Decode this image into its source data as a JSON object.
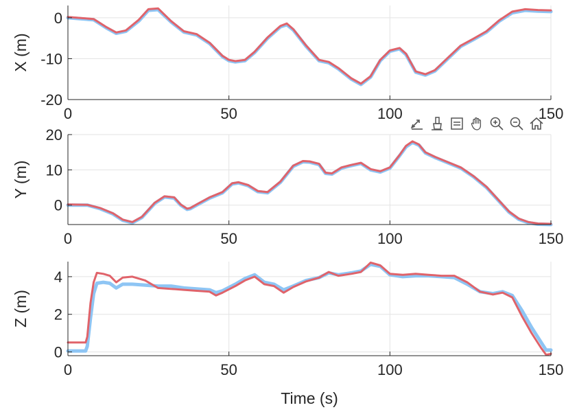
{
  "chart_data": [
    {
      "type": "line",
      "ylabel": "X (m)",
      "xlabel": "",
      "xlim": [
        0,
        150
      ],
      "ylim": [
        -20,
        3
      ],
      "xticks": [
        "0",
        "50",
        "100",
        "150"
      ],
      "yticks": [
        "0",
        "-10",
        "-20"
      ],
      "ytick_values": [
        0,
        -10,
        -20
      ],
      "grid": true,
      "series": [
        {
          "color": "#8ec5f4",
          "x": [
            0,
            8,
            12,
            15,
            18,
            22,
            25,
            28,
            32,
            36,
            40,
            44,
            48,
            50,
            52,
            55,
            58,
            62,
            66,
            68,
            70,
            74,
            78,
            81,
            84,
            88,
            91,
            94,
            97,
            100,
            103,
            105,
            108,
            111,
            114,
            118,
            122,
            126,
            130,
            134,
            138,
            142,
            146,
            150
          ],
          "y": [
            0,
            -0.5,
            -2.5,
            -3.8,
            -3.3,
            -0.8,
            1.8,
            2.0,
            -1.0,
            -3.5,
            -4.2,
            -6.3,
            -9.5,
            -10.5,
            -10.8,
            -10.5,
            -8.5,
            -5.0,
            -2.2,
            -1.7,
            -3.0,
            -7.0,
            -10.5,
            -11.0,
            -12.5,
            -15.0,
            -16.3,
            -14.5,
            -10.5,
            -8.2,
            -7.6,
            -9.0,
            -13.3,
            -14.0,
            -13.0,
            -10.0,
            -7.0,
            -5.3,
            -3.5,
            -0.8,
            1.2,
            1.8,
            1.6,
            1.5
          ]
        },
        {
          "color": "#e0636a",
          "x": [
            0,
            8,
            12,
            15,
            18,
            22,
            25,
            28,
            32,
            36,
            40,
            44,
            48,
            50,
            52,
            55,
            58,
            62,
            66,
            68,
            70,
            74,
            78,
            81,
            84,
            88,
            91,
            94,
            97,
            100,
            103,
            105,
            108,
            111,
            114,
            118,
            122,
            126,
            130,
            134,
            138,
            142,
            146,
            150
          ],
          "y": [
            0.2,
            -0.3,
            -2.3,
            -3.6,
            -3.1,
            -0.5,
            2.1,
            2.3,
            -0.8,
            -3.3,
            -4.0,
            -6.1,
            -9.3,
            -10.3,
            -10.6,
            -10.3,
            -8.3,
            -4.8,
            -2.0,
            -1.4,
            -2.8,
            -6.8,
            -10.3,
            -10.8,
            -12.3,
            -14.8,
            -16.1,
            -14.3,
            -10.3,
            -8.0,
            -7.4,
            -8.8,
            -13.1,
            -13.8,
            -12.8,
            -9.8,
            -6.8,
            -5.1,
            -3.3,
            -0.6,
            1.5,
            2.1,
            1.9,
            1.8
          ]
        }
      ]
    },
    {
      "type": "line",
      "ylabel": "Y (m)",
      "xlabel": "",
      "xlim": [
        0,
        150
      ],
      "ylim": [
        -5.5,
        20
      ],
      "xticks": [
        "0",
        "50",
        "100",
        "150"
      ],
      "yticks": [
        "20",
        "10",
        "0"
      ],
      "ytick_values": [
        20,
        10,
        0
      ],
      "grid": true,
      "series": [
        {
          "color": "#8ec5f4",
          "x": [
            0,
            6,
            10,
            14,
            17,
            20,
            23,
            27,
            30,
            33,
            35,
            37,
            38,
            40,
            44,
            48,
            51,
            53,
            56,
            59,
            62,
            66,
            70,
            73,
            75,
            78,
            80,
            82,
            85,
            88,
            91,
            94,
            97,
            100,
            103,
            105,
            107,
            109,
            111,
            114,
            118,
            122,
            126,
            130,
            134,
            137,
            140,
            143,
            146,
            150
          ],
          "y": [
            0,
            0,
            -1.0,
            -2.5,
            -4.3,
            -5.0,
            -3.5,
            0.5,
            2.3,
            2.0,
            0,
            -1.2,
            -1.0,
            0,
            2.0,
            3.5,
            6.0,
            6.3,
            5.5,
            3.8,
            3.5,
            6.5,
            11.0,
            12.3,
            12.2,
            11.5,
            9.0,
            8.8,
            10.5,
            11.2,
            11.8,
            10.0,
            9.4,
            10.5,
            14.0,
            16.5,
            17.8,
            17.0,
            14.8,
            13.5,
            12.0,
            10.5,
            8.0,
            5.0,
            1.0,
            -2.0,
            -4.0,
            -5.0,
            -5.4,
            -5.5
          ]
        },
        {
          "color": "#e0636a",
          "x": [
            0,
            6,
            10,
            14,
            17,
            20,
            23,
            27,
            30,
            33,
            35,
            37,
            38,
            40,
            44,
            48,
            51,
            53,
            56,
            59,
            62,
            66,
            70,
            73,
            75,
            78,
            80,
            82,
            85,
            88,
            91,
            94,
            97,
            100,
            103,
            105,
            107,
            109,
            111,
            114,
            118,
            122,
            126,
            130,
            134,
            137,
            140,
            143,
            146,
            150
          ],
          "y": [
            0.2,
            0.1,
            -0.8,
            -2.3,
            -4.1,
            -4.8,
            -3.3,
            0.7,
            2.5,
            2.2,
            0.2,
            -1.0,
            -0.8,
            0.2,
            2.2,
            3.7,
            6.2,
            6.5,
            5.7,
            4.0,
            3.7,
            6.7,
            11.2,
            12.5,
            12.4,
            11.7,
            9.2,
            9.0,
            10.7,
            11.4,
            12.0,
            10.2,
            9.6,
            10.7,
            14.2,
            16.8,
            18.1,
            17.2,
            15.0,
            13.7,
            12.2,
            10.7,
            8.2,
            5.2,
            1.2,
            -1.8,
            -3.8,
            -4.8,
            -5.2,
            -5.3
          ]
        }
      ]
    },
    {
      "type": "line",
      "ylabel": "Z (m)",
      "xlabel": "Time (s)",
      "xlim": [
        0,
        150
      ],
      "ylim": [
        -0.2,
        4.8
      ],
      "xticks": [
        "0",
        "50",
        "100",
        "150"
      ],
      "yticks": [
        "4",
        "2",
        "0"
      ],
      "ytick_values": [
        4,
        2,
        0
      ],
      "grid": true,
      "series": [
        {
          "color": "#8ec5f4",
          "x": [
            0,
            5.5,
            6,
            7,
            8,
            9,
            11,
            13,
            15,
            17,
            20,
            24,
            28,
            32,
            36,
            40,
            44,
            46,
            48,
            52,
            55,
            58,
            61,
            64,
            67,
            70,
            74,
            78,
            81,
            84,
            88,
            91,
            94,
            97,
            100,
            104,
            108,
            112,
            116,
            120,
            124,
            128,
            132,
            135,
            138,
            141,
            144,
            147,
            148.5,
            150
          ],
          "y": [
            0.05,
            0.05,
            0.3,
            1.8,
            3.1,
            3.65,
            3.7,
            3.65,
            3.4,
            3.6,
            3.6,
            3.55,
            3.5,
            3.5,
            3.4,
            3.35,
            3.3,
            3.15,
            3.25,
            3.6,
            3.9,
            4.1,
            3.7,
            3.6,
            3.3,
            3.5,
            3.8,
            3.95,
            4.2,
            4.1,
            4.2,
            4.3,
            4.65,
            4.55,
            4.1,
            4.0,
            4.05,
            4.05,
            4.0,
            3.95,
            3.6,
            3.2,
            3.1,
            3.2,
            3.0,
            2.2,
            1.3,
            0.5,
            0.1,
            0.1
          ]
        },
        {
          "color": "#e0636a",
          "x": [
            0,
            5.5,
            6,
            7,
            8,
            9,
            11,
            13,
            15,
            17,
            20,
            24,
            28,
            32,
            36,
            40,
            44,
            46,
            48,
            52,
            55,
            58,
            61,
            64,
            67,
            70,
            74,
            78,
            81,
            84,
            88,
            91,
            94,
            97,
            100,
            104,
            108,
            112,
            116,
            120,
            124,
            128,
            132,
            135,
            138,
            141,
            144,
            147,
            148.5,
            150
          ],
          "y": [
            0.5,
            0.5,
            0.8,
            2.6,
            3.7,
            4.2,
            4.15,
            4.05,
            3.7,
            3.95,
            4.0,
            3.8,
            3.4,
            3.35,
            3.3,
            3.25,
            3.2,
            3.0,
            3.15,
            3.5,
            3.8,
            4.0,
            3.6,
            3.5,
            3.15,
            3.45,
            3.75,
            3.95,
            4.25,
            4.05,
            4.15,
            4.25,
            4.75,
            4.6,
            4.15,
            4.1,
            4.15,
            4.1,
            4.05,
            4.05,
            3.7,
            3.2,
            3.05,
            3.15,
            2.9,
            1.9,
            1.0,
            0.2,
            -0.15,
            -0.1
          ]
        }
      ]
    }
  ],
  "toolbar": {
    "icons": [
      "export-icon",
      "brush-icon",
      "datatip-icon",
      "pan-hand-icon",
      "zoom-in-icon",
      "zoom-out-icon",
      "home-icon"
    ]
  }
}
